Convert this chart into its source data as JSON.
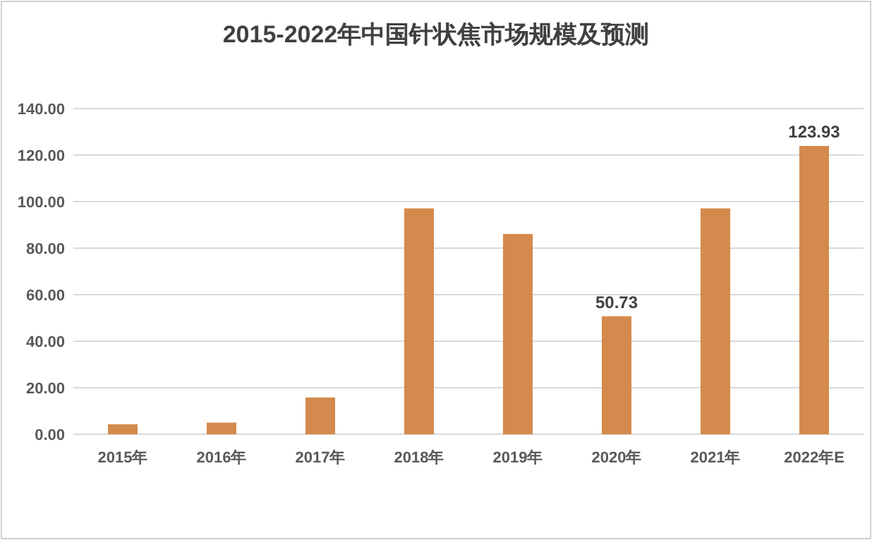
{
  "chart_data": {
    "type": "bar",
    "title": "2015-2022年中国针状焦市场规模及预测",
    "categories": [
      "2015年",
      "2016年",
      "2017年",
      "2018年",
      "2019年",
      "2020年",
      "2021年",
      "2022年E"
    ],
    "values": [
      4.3,
      5.0,
      15.8,
      97.1,
      86.1,
      50.73,
      97.1,
      123.93
    ],
    "value_labels": [
      null,
      null,
      null,
      null,
      null,
      "50.73",
      null,
      "123.93"
    ],
    "color": "#d48a4c",
    "ylim": [
      0,
      140
    ],
    "yticks": [
      {
        "value": 0,
        "label": "0.00"
      },
      {
        "value": 20,
        "label": "20.00"
      },
      {
        "value": 40,
        "label": "40.00"
      },
      {
        "value": 60,
        "label": "60.00"
      },
      {
        "value": 80,
        "label": "80.00"
      },
      {
        "value": 100,
        "label": "100.00"
      },
      {
        "value": 120,
        "label": "120.00"
      },
      {
        "value": 140,
        "label": "140.00"
      }
    ],
    "grid": "y"
  }
}
